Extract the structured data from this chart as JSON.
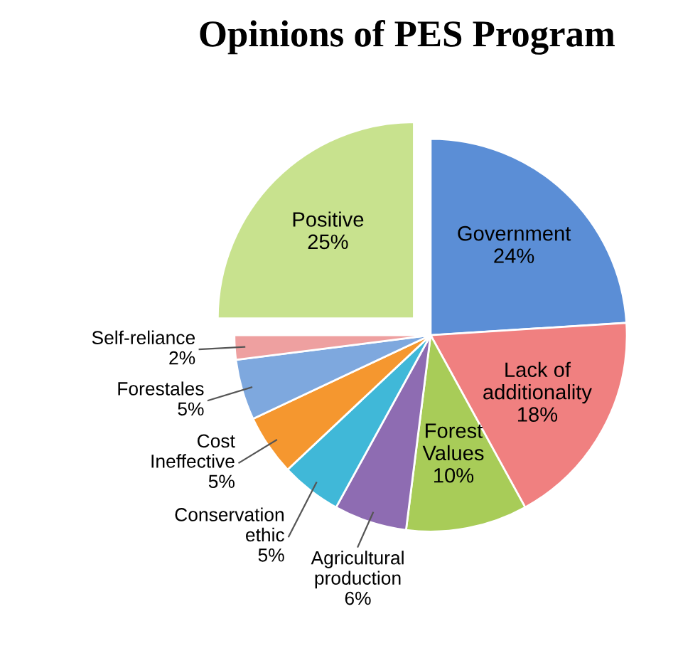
{
  "chart_data": {
    "type": "pie",
    "title": "Opinions of PES Program",
    "categories": [
      "Government",
      "Lack of\nadditionality",
      "Forest\nValues",
      "Agricultural\nproduction",
      "Conservation\nethic",
      "Cost\nIneffective",
      "Forestales",
      "Self-reliance",
      "Positive"
    ],
    "values": [
      24,
      18,
      10,
      6,
      5,
      5,
      5,
      2,
      25
    ],
    "colors": [
      "#5b8ed6",
      "#f08080",
      "#a8cc58",
      "#8e6cb2",
      "#40b8d8",
      "#f5972f",
      "#7ea8de",
      "#eea0a0",
      "#c8e28e"
    ],
    "value_labels": [
      "24%",
      "18%",
      "10%",
      "6%",
      "5%",
      "5%",
      "5%",
      "2%",
      "25%"
    ],
    "legend": false
  }
}
